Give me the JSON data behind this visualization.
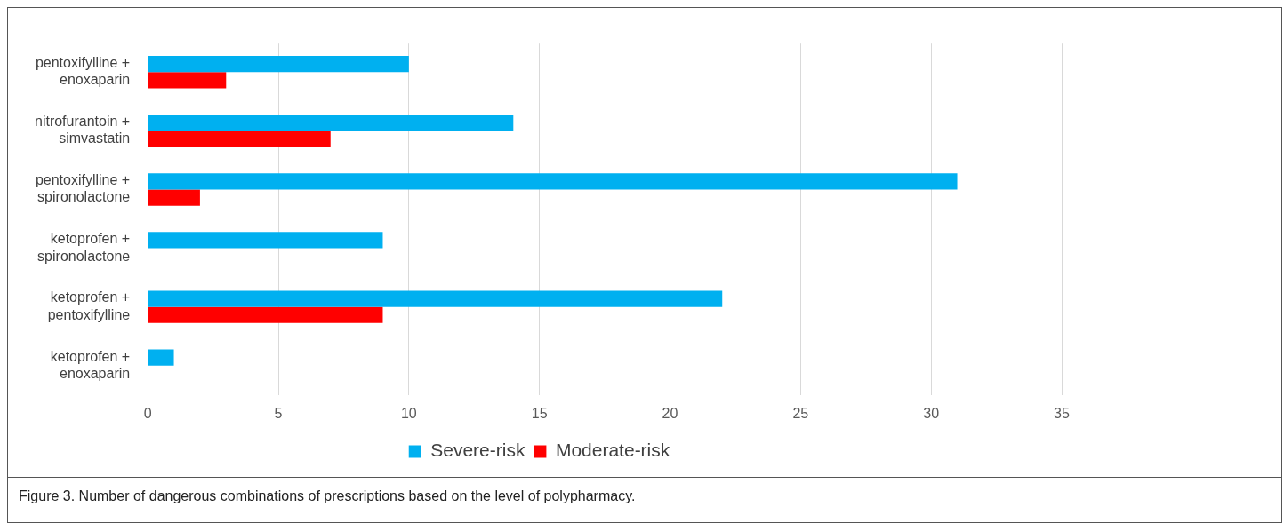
{
  "chart_data": {
    "type": "bar",
    "orientation": "horizontal",
    "categories": [
      "pentoxifylline + enoxaparin",
      "nitrofurantoin + simvastatin",
      "pentoxifylline + spironolactone",
      "ketoprofen + spironolactone",
      "ketoprofen + pentoxifylline",
      "ketoprofen + enoxaparin"
    ],
    "series": [
      {
        "name": "Severe-risk",
        "color": "#00b0f0",
        "values": [
          10,
          14,
          31,
          9,
          22,
          1
        ]
      },
      {
        "name": "Moderate-risk",
        "color": "#ff0000",
        "values": [
          3,
          7,
          2,
          null,
          9,
          null
        ]
      }
    ],
    "xlim": [
      0,
      35
    ],
    "xticks": [
      0,
      5,
      10,
      15,
      20,
      25,
      30,
      35
    ],
    "grid": "x",
    "legend": "bottom",
    "annotations": [
      "Figure 3.  Number of dangerous combinations of prescriptions based on the level of polypharmacy."
    ]
  }
}
